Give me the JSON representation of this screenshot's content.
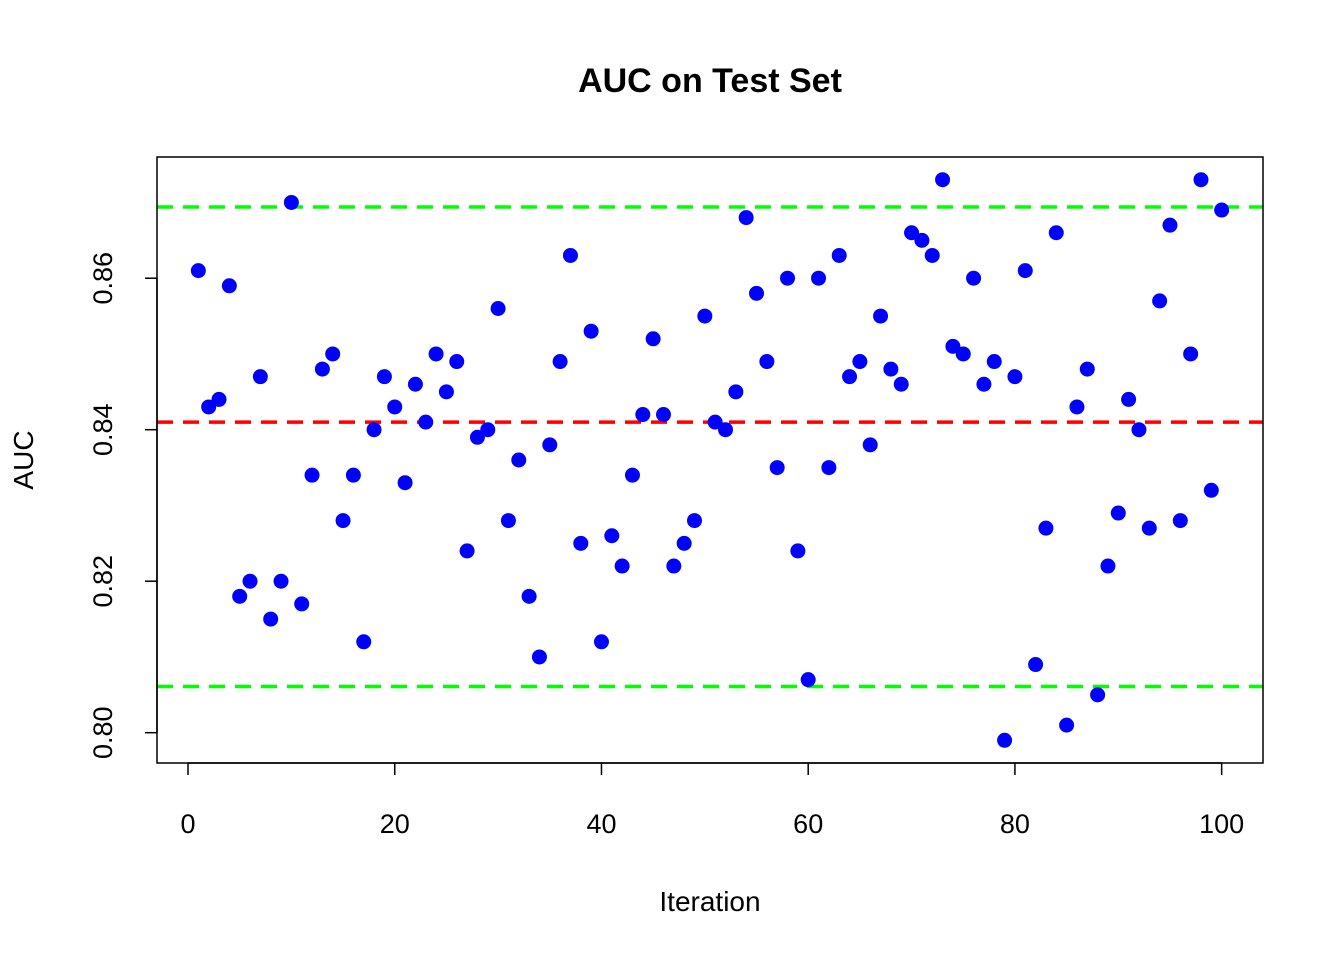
{
  "chart_data": {
    "type": "scatter",
    "title": "AUC on Test Set",
    "xlabel": "Iteration",
    "ylabel": "AUC",
    "xlim": [
      -3,
      104
    ],
    "ylim": [
      0.796,
      0.876
    ],
    "x_ticks": [
      0,
      20,
      40,
      60,
      80,
      100
    ],
    "y_ticks": [
      0.8,
      0.82,
      0.84,
      0.86
    ],
    "grid": false,
    "point_color": "#0000ff",
    "x": [
      1,
      2,
      3,
      4,
      5,
      6,
      7,
      8,
      9,
      10,
      11,
      12,
      13,
      14,
      15,
      16,
      17,
      18,
      19,
      20,
      21,
      22,
      23,
      24,
      25,
      26,
      27,
      28,
      29,
      30,
      31,
      32,
      33,
      34,
      35,
      36,
      37,
      38,
      39,
      40,
      41,
      42,
      43,
      44,
      45,
      46,
      47,
      48,
      49,
      50,
      51,
      52,
      53,
      54,
      55,
      56,
      57,
      58,
      59,
      60,
      61,
      62,
      63,
      64,
      65,
      66,
      67,
      68,
      69,
      70,
      71,
      72,
      73,
      74,
      75,
      76,
      77,
      78,
      79,
      80,
      81,
      82,
      83,
      84,
      85,
      86,
      87,
      88,
      89,
      90,
      91,
      92,
      93,
      94,
      95,
      96,
      97,
      98,
      99,
      100
    ],
    "y": [
      0.861,
      0.843,
      0.844,
      0.859,
      0.818,
      0.82,
      0.847,
      0.815,
      0.82,
      0.87,
      0.817,
      0.834,
      0.848,
      0.85,
      0.828,
      0.834,
      0.812,
      0.84,
      0.847,
      0.843,
      0.833,
      0.846,
      0.841,
      0.85,
      0.845,
      0.849,
      0.824,
      0.839,
      0.84,
      0.856,
      0.828,
      0.836,
      0.818,
      0.81,
      0.838,
      0.849,
      0.863,
      0.825,
      0.853,
      0.812,
      0.826,
      0.822,
      0.834,
      0.842,
      0.852,
      0.842,
      0.822,
      0.825,
      0.828,
      0.855,
      0.841,
      0.84,
      0.845,
      0.868,
      0.858,
      0.849,
      0.835,
      0.86,
      0.824,
      0.807,
      0.86,
      0.835,
      0.863,
      0.847,
      0.849,
      0.838,
      0.855,
      0.848,
      0.846,
      0.866,
      0.865,
      0.863,
      0.873,
      0.851,
      0.85,
      0.86,
      0.846,
      0.849,
      0.799,
      0.847,
      0.861,
      0.809,
      0.827,
      0.866,
      0.801,
      0.843,
      0.848,
      0.805,
      0.822,
      0.829,
      0.844,
      0.84,
      0.827,
      0.857,
      0.867,
      0.828,
      0.85,
      0.873,
      0.832,
      0.869
    ],
    "hlines": [
      {
        "value": 0.841,
        "color": "#ff0000"
      },
      {
        "value": 0.8694,
        "color": "#00ff00"
      },
      {
        "value": 0.8061,
        "color": "#00ff00"
      }
    ]
  }
}
